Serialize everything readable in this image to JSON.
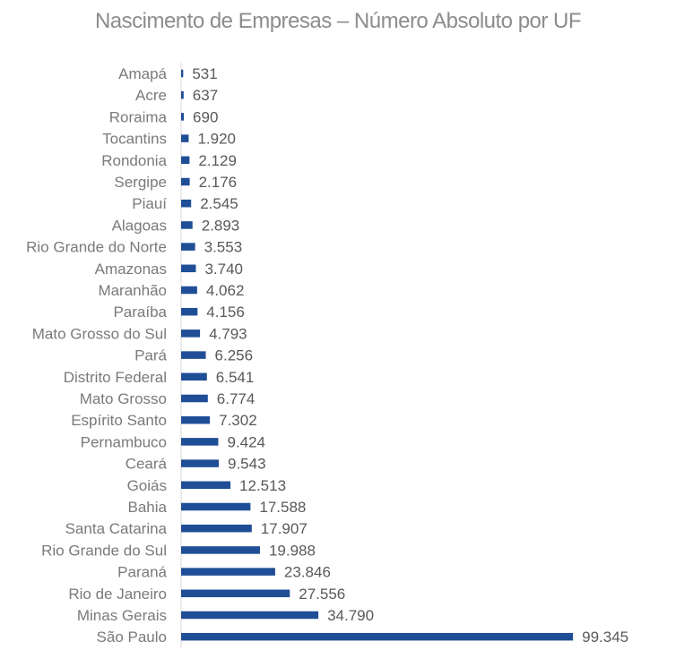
{
  "chart_data": {
    "type": "bar",
    "orientation": "horizontal",
    "title": "Nascimento de Empresas – Número Absoluto por UF",
    "xlabel": "",
    "ylabel": "",
    "xlim": [
      0,
      100000
    ],
    "grid": false,
    "legend": "none",
    "bar_color": "#1f4e96",
    "categories": [
      "Amapá",
      "Acre",
      "Roraima",
      "Tocantins",
      "Rondonia",
      "Sergipe",
      "Piauí",
      "Alagoas",
      "Rio Grande do Norte",
      "Amazonas",
      "Maranhão",
      "Paraíba",
      "Mato Grosso do Sul",
      "Pará",
      "Distrito Federal",
      "Mato Grosso",
      "Espírito Santo",
      "Pernambuco",
      "Ceará",
      "Goiás",
      "Bahia",
      "Santa Catarina",
      "Rio Grande do Sul",
      "Paraná",
      "Rio de Janeiro",
      "Minas Gerais",
      "São Paulo"
    ],
    "values": [
      531,
      637,
      690,
      1920,
      2129,
      2176,
      2545,
      2893,
      3553,
      3740,
      4062,
      4156,
      4793,
      6256,
      6541,
      6774,
      7302,
      9424,
      9543,
      12513,
      17588,
      17907,
      19988,
      23846,
      27556,
      34790,
      99345
    ],
    "data_labels": [
      "531",
      "637",
      "690",
      "1.920",
      "2.129",
      "2.176",
      "2.545",
      "2.893",
      "3.553",
      "3.740",
      "4.062",
      "4.156",
      "4.793",
      "6.256",
      "6.541",
      "6.774",
      "7.302",
      "9.424",
      "9.543",
      "12.513",
      "17.588",
      "17.907",
      "19.988",
      "23.846",
      "27.556",
      "34.790",
      "99.345"
    ]
  }
}
